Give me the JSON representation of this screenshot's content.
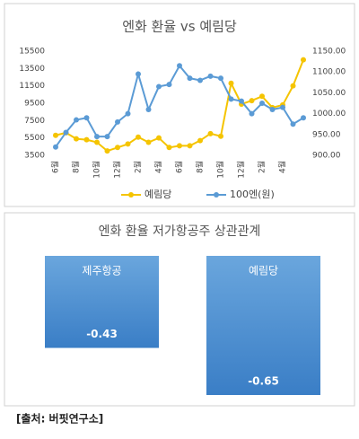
{
  "chart_data": [
    {
      "type": "line",
      "title": "엔화 환율 vs 예림당",
      "categories": [
        "6월",
        null,
        "8월",
        null,
        "10월",
        null,
        "12월",
        null,
        "2월",
        null,
        "4월",
        null,
        "6월",
        null,
        "8월",
        null,
        "10월",
        null,
        "12월",
        null,
        "2월",
        null,
        "4월",
        null,
        null
      ],
      "series": [
        {
          "name": "예림당",
          "color": "#f5c400",
          "values": [
            5800,
            6100,
            5400,
            5300,
            5000,
            4000,
            4400,
            4800,
            5600,
            5000,
            5500,
            4400,
            4600,
            4600,
            5200,
            6000,
            5700,
            11800,
            9400,
            9800,
            10300,
            9000,
            9300,
            11500,
            14500
          ]
        },
        {
          "name": "100엔(원)",
          "color": "#5b9bd5",
          "axis": "y2",
          "values": [
            920,
            955,
            985,
            990,
            945,
            945,
            980,
            1000,
            1095,
            1010,
            1065,
            1070,
            1115,
            1085,
            1080,
            1090,
            1085,
            1035,
            1030,
            1000,
            1025,
            1010,
            1015,
            975,
            990
          ]
        }
      ],
      "ylim": [
        3500,
        15500
      ],
      "yticks": [
        3500,
        5500,
        7500,
        9500,
        11500,
        13500,
        15500
      ],
      "y2lim": [
        900,
        1150
      ],
      "y2ticks": [
        {
          "value": 900,
          "label": "900.00"
        },
        {
          "value": 950,
          "label": "950.00"
        },
        {
          "value": 1000,
          "label": "1000.00"
        },
        {
          "value": 1050,
          "label": "1050.00"
        },
        {
          "value": 1100,
          "label": "1100.00"
        },
        {
          "value": 1150,
          "label": "1150.00"
        }
      ],
      "legend": "bottom"
    },
    {
      "type": "bar",
      "title": "엔화 환율 저가항공주 상관관계",
      "categories": [
        "제주항공",
        "예림당"
      ],
      "values": [
        -0.43,
        -0.65
      ],
      "color": "#4a8ad0"
    }
  ],
  "source": "[출처: 버핏연구소]"
}
